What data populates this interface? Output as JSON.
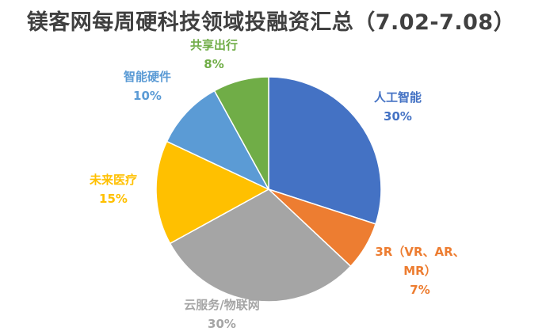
{
  "chart_data": {
    "type": "pie",
    "title": "镁客网每周硬科技领域投融资汇总（7.02-7.08）",
    "slices": [
      {
        "name": "人工智能",
        "value": 30,
        "value_label": "30%",
        "color": "#4472C4"
      },
      {
        "name": "3R（VR、AR、MR）",
        "value": 7,
        "value_label": "7%",
        "color": "#ED7D31"
      },
      {
        "name": "云服务/物联网",
        "value": 30,
        "value_label": "30%",
        "color": "#A5A5A5"
      },
      {
        "name": "未来医疗",
        "value": 15,
        "value_label": "15%",
        "color": "#FFC000"
      },
      {
        "name": "智能硬件",
        "value": 10,
        "value_label": "10%",
        "color": "#5B9BD5"
      },
      {
        "name": "共享出行",
        "value": 8,
        "value_label": "8%",
        "color": "#70AD47"
      }
    ]
  }
}
